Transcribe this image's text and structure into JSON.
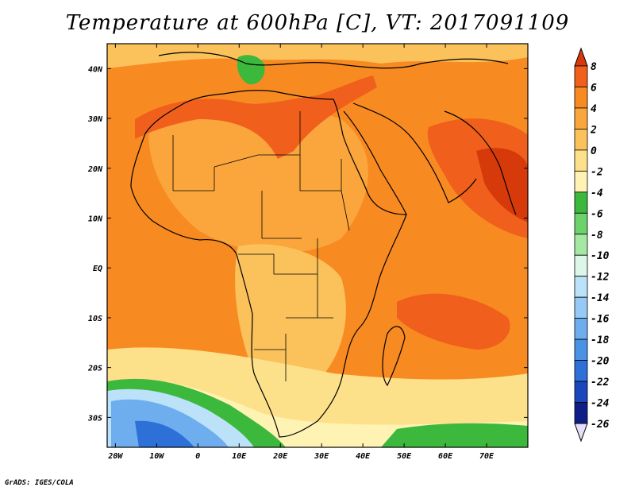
{
  "title": "Temperature at 600hPa [C], VT: 2017091109",
  "credit": "GrADS: IGES/COLA",
  "map": {
    "lon_range": [
      -22,
      80
    ],
    "lat_range": [
      -36,
      45
    ],
    "lon_ticks": [
      "20W",
      "10W",
      "0",
      "10E",
      "20E",
      "30E",
      "40E",
      "50E",
      "60E",
      "70E"
    ],
    "lon_tick_values": [
      -20,
      -10,
      0,
      10,
      20,
      30,
      40,
      50,
      60,
      70
    ],
    "lat_ticks": [
      "40N",
      "30N",
      "20N",
      "10N",
      "EQ",
      "10S",
      "20S",
      "30S"
    ],
    "lat_tick_values": [
      40,
      30,
      20,
      10,
      0,
      -10,
      -20,
      -30
    ]
  },
  "colorbar": {
    "labels": [
      "8",
      "6",
      "4",
      "2",
      "0",
      "-2",
      "-4",
      "-6",
      "-8",
      "-10",
      "-12",
      "-14",
      "-16",
      "-18",
      "-20",
      "-22",
      "-24",
      "-26"
    ],
    "colors": [
      "#d73a0a",
      "#f0601c",
      "#f88a22",
      "#fba63c",
      "#fbc25c",
      "#fde08a",
      "#fff3b4",
      "#3cb83c",
      "#6cd26c",
      "#a4e8a4",
      "#dcf6e8",
      "#bce2fa",
      "#96caf4",
      "#6eaeee",
      "#4a92e4",
      "#2c70d8",
      "#1a48bc",
      "#0e1e86",
      "#e4e0f8"
    ]
  }
}
